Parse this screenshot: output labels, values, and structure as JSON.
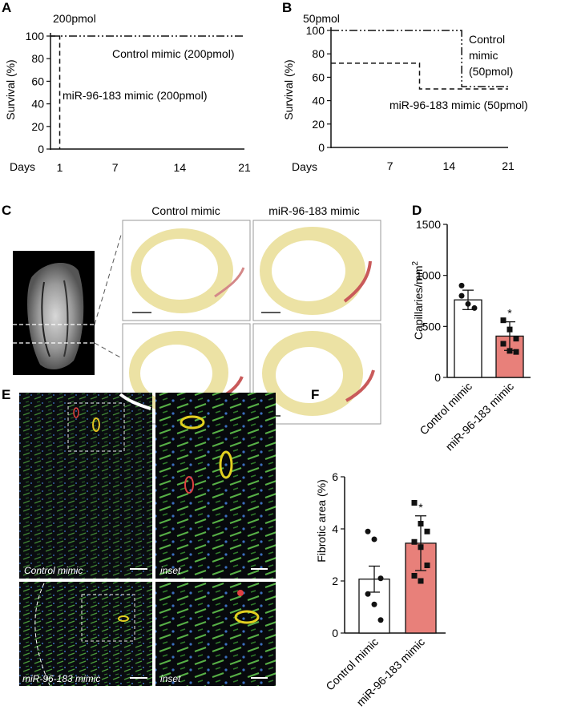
{
  "panels": {
    "A": "A",
    "B": "B",
    "C": "C",
    "D": "D",
    "E": "E",
    "F": "F"
  },
  "colors": {
    "control_bar": "#ffffff",
    "treated_bar": "#e8807a",
    "axis": "#111111"
  },
  "chart_data": [
    {
      "panel": "A",
      "type": "line",
      "title": "200pmol",
      "xlabel": "Days",
      "ylabel": "Survival (%)",
      "xticks": [
        "1",
        "7",
        "14",
        "21"
      ],
      "yticks": [
        "0",
        "20",
        "40",
        "60",
        "80",
        "100"
      ],
      "xlim": [
        0,
        21
      ],
      "ylim": [
        0,
        100
      ],
      "annotations": [
        "Control mimic (200pmol)",
        "miR-96-183 mimic (200pmol)"
      ],
      "series": [
        {
          "name": "Control mimic (200pmol)",
          "style": "dash-dot",
          "points": [
            [
              0,
              100
            ],
            [
              21,
              100
            ]
          ]
        },
        {
          "name": "miR-96-183 mimic (200pmol)",
          "style": "dashed",
          "points": [
            [
              0,
              100
            ],
            [
              1,
              100
            ],
            [
              1,
              0
            ]
          ]
        }
      ]
    },
    {
      "panel": "B",
      "type": "line",
      "title": "50pmol",
      "xlabel": "Days",
      "ylabel": "Survival (%)",
      "xticks": [
        "7",
        "14",
        "21"
      ],
      "yticks": [
        "0",
        "20",
        "40",
        "60",
        "80",
        "100"
      ],
      "xlim": [
        0,
        21
      ],
      "ylim": [
        0,
        100
      ],
      "annotations": [
        "Control",
        "mimic",
        "(50pmol)",
        "miR-96-183 mimic (50pmol)"
      ],
      "series": [
        {
          "name": "Control mimic (50pmol)",
          "style": "dash-dot",
          "points": [
            [
              0,
              100
            ],
            [
              15.5,
              100
            ],
            [
              15.5,
              52
            ],
            [
              21,
              52
            ]
          ]
        },
        {
          "name": "miR-96-183 mimic (50pmol)",
          "style": "dashed",
          "points": [
            [
              0,
              72
            ],
            [
              10.5,
              72
            ],
            [
              10.5,
              50
            ],
            [
              21,
              50
            ]
          ]
        }
      ]
    },
    {
      "panel": "D",
      "type": "bar",
      "ylabel": "Capillaries/mm",
      "ylabel_sup": "2",
      "categories": [
        "Control mimic",
        "miR-96-183 mimic"
      ],
      "values": [
        760,
        405
      ],
      "errors": [
        95,
        140
      ],
      "ylim": [
        0,
        1500
      ],
      "yticks": [
        "0",
        "500",
        "1000",
        "1500"
      ],
      "significance": [
        "",
        "*"
      ],
      "points": [
        [
          900,
          720,
          680,
          800
        ],
        [
          560,
          470,
          380,
          330,
          260,
          250
        ]
      ]
    },
    {
      "panel": "F",
      "type": "bar",
      "ylabel": "Fibrotic area (%)",
      "categories": [
        "Control mimic",
        "miR-96-183 mimic"
      ],
      "values": [
        2.07,
        3.45
      ],
      "errors": [
        0.5,
        1.05
      ],
      "ylim": [
        0,
        6
      ],
      "yticks": [
        "0",
        "2",
        "4",
        "6"
      ],
      "significance": [
        "",
        "*"
      ],
      "points": [
        [
          3.9,
          3.6,
          2.1,
          1.5,
          1.1,
          0.5
        ],
        [
          5.0,
          4.2,
          3.9,
          3.5,
          3.3,
          2.6,
          2.2,
          2.0
        ]
      ]
    }
  ],
  "panel_c": {
    "col_labels": [
      "Control mimic",
      "miR-96-183 mimic"
    ]
  },
  "panel_e": {
    "labels": [
      "Control mimic",
      "inset",
      "miR-96-183 mimic",
      "inset"
    ]
  }
}
